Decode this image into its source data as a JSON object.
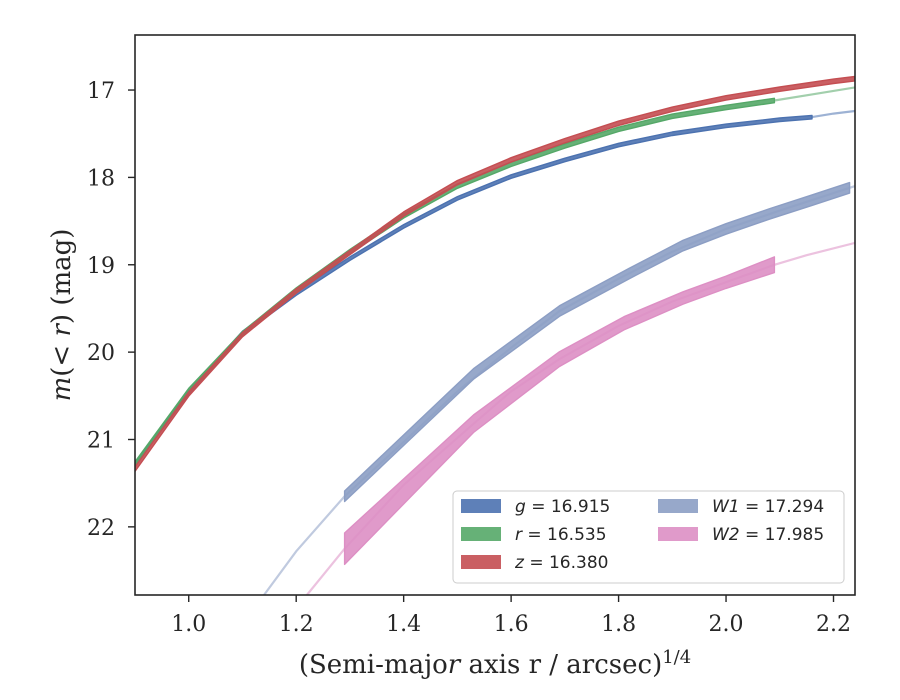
{
  "chart_data": {
    "type": "line",
    "xlabel": "(Semi-major axis r / arcsec)^1/4",
    "ylabel": "m(< r) (mag)",
    "xlim": [
      0.9,
      2.24
    ],
    "ylim": [
      22.78,
      16.37
    ],
    "y_inverted": true,
    "grid": false,
    "legend_position": "lower-right",
    "x_ticks": [
      {
        "value": 1.0,
        "label": "1.0"
      },
      {
        "value": 1.2,
        "label": "1.2"
      },
      {
        "value": 1.4,
        "label": "1.4"
      },
      {
        "value": 1.6,
        "label": "1.6"
      },
      {
        "value": 1.8,
        "label": "1.8"
      },
      {
        "value": 2.0,
        "label": "2.0"
      },
      {
        "value": 2.2,
        "label": "2.2"
      }
    ],
    "y_ticks": [
      {
        "value": 17,
        "label": "17"
      },
      {
        "value": 18,
        "label": "18"
      },
      {
        "value": 19,
        "label": "19"
      },
      {
        "value": 20,
        "label": "20"
      },
      {
        "value": 21,
        "label": "21"
      },
      {
        "value": 22,
        "label": "22"
      }
    ],
    "series": [
      {
        "name": "g = 16.915",
        "color": "#4c72b0",
        "band_halfwidth": 0.02,
        "measured": {
          "x": [
            0.9,
            1.0,
            1.1,
            1.2,
            1.3,
            1.4,
            1.5,
            1.6,
            1.7,
            1.8,
            1.9,
            2.0,
            2.1,
            2.16
          ],
          "y": [
            21.28,
            20.46,
            19.78,
            19.33,
            18.93,
            18.56,
            18.24,
            17.99,
            17.8,
            17.63,
            17.5,
            17.41,
            17.34,
            17.31
          ]
        },
        "model": {
          "x": [
            2.16,
            2.2,
            2.24
          ],
          "y": [
            17.31,
            17.27,
            17.24
          ]
        }
      },
      {
        "name": "r = 16.535",
        "color": "#55a868",
        "band_halfwidth": 0.025,
        "measured": {
          "x": [
            0.9,
            1.0,
            1.1,
            1.2,
            1.3,
            1.4,
            1.5,
            1.6,
            1.7,
            1.8,
            1.9,
            2.0,
            2.09
          ],
          "y": [
            21.28,
            20.44,
            19.79,
            19.29,
            18.85,
            18.44,
            18.1,
            17.85,
            17.64,
            17.45,
            17.3,
            17.2,
            17.12
          ]
        },
        "model": {
          "x": [
            2.09,
            2.16,
            2.24
          ],
          "y": [
            17.12,
            17.05,
            16.97
          ]
        }
      },
      {
        "name": "z = 16.380",
        "color": "#c44e52",
        "band_halfwidth": 0.025,
        "measured": {
          "x": [
            0.9,
            1.0,
            1.1,
            1.2,
            1.3,
            1.4,
            1.5,
            1.6,
            1.7,
            1.8,
            1.9,
            2.0,
            2.1,
            2.2,
            2.24
          ],
          "y": [
            21.34,
            20.48,
            19.8,
            19.3,
            18.86,
            18.42,
            18.06,
            17.8,
            17.58,
            17.38,
            17.22,
            17.09,
            16.99,
            16.9,
            16.87
          ]
        },
        "model": {
          "x": [],
          "y": []
        }
      },
      {
        "name": "W1 = 17.294",
        "color": "#8c9ec4",
        "band_halfwidth": 0.06,
        "measured": {
          "x": [
            1.29,
            1.53,
            1.69,
            1.82,
            1.92,
            2.0,
            2.08,
            2.16,
            2.23
          ],
          "y": [
            21.65,
            20.25,
            19.53,
            19.1,
            18.78,
            18.59,
            18.42,
            18.26,
            18.12
          ]
        },
        "model": {
          "x": [
            1.14,
            1.2,
            1.29,
            1.4,
            1.5,
            1.6,
            1.69,
            1.8,
            1.9,
            2.0,
            2.1,
            2.24
          ],
          "y": [
            22.78,
            22.28,
            21.65,
            21.03,
            20.45,
            19.95,
            19.53,
            19.16,
            18.85,
            18.59,
            18.38,
            18.1
          ]
        }
      },
      {
        "name": "W2 = 17.985",
        "color": "#dd8fc4",
        "band_halfwidth": [
          0.18,
          0.1,
          0.085,
          0.075,
          0.07,
          0.07,
          0.09
        ],
        "measured": {
          "x": [
            1.29,
            1.53,
            1.69,
            1.81,
            1.92,
            2.0,
            2.09
          ],
          "y": [
            22.25,
            20.82,
            20.08,
            19.67,
            19.38,
            19.2,
            19.0
          ]
        },
        "model": {
          "x": [
            1.22,
            1.29,
            1.4,
            1.53,
            1.6,
            1.69,
            1.8,
            1.9,
            2.0,
            2.09,
            2.15,
            2.24
          ],
          "y": [
            22.78,
            22.25,
            21.52,
            20.82,
            20.45,
            20.08,
            19.7,
            19.42,
            19.2,
            19.0,
            18.89,
            18.75
          ]
        }
      }
    ]
  }
}
